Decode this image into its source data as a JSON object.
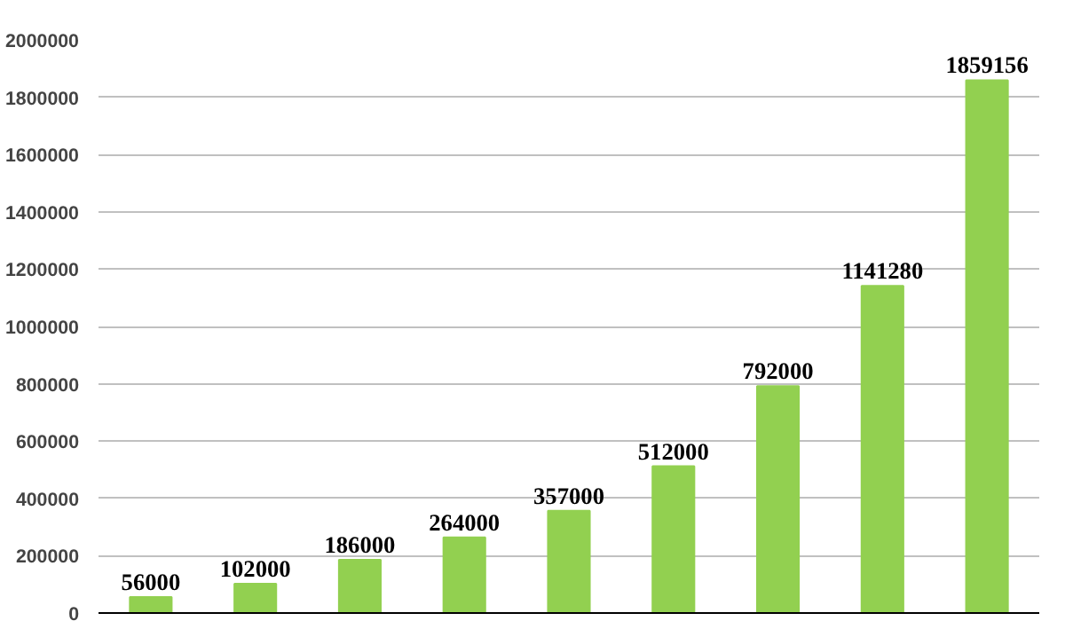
{
  "chart_data": {
    "type": "bar",
    "categories": [
      null,
      null,
      null,
      null,
      null,
      null,
      null,
      null,
      null
    ],
    "values": [
      56000,
      102000,
      186000,
      264000,
      357000,
      512000,
      792000,
      1141280,
      1859156
    ],
    "color": "#92d050",
    "ylim": [
      0,
      2000000
    ],
    "yticks": [
      0,
      200000,
      400000,
      600000,
      800000,
      1000000,
      1200000,
      1400000,
      1600000,
      1800000,
      2000000
    ],
    "grid": "y",
    "data_labels": true
  }
}
